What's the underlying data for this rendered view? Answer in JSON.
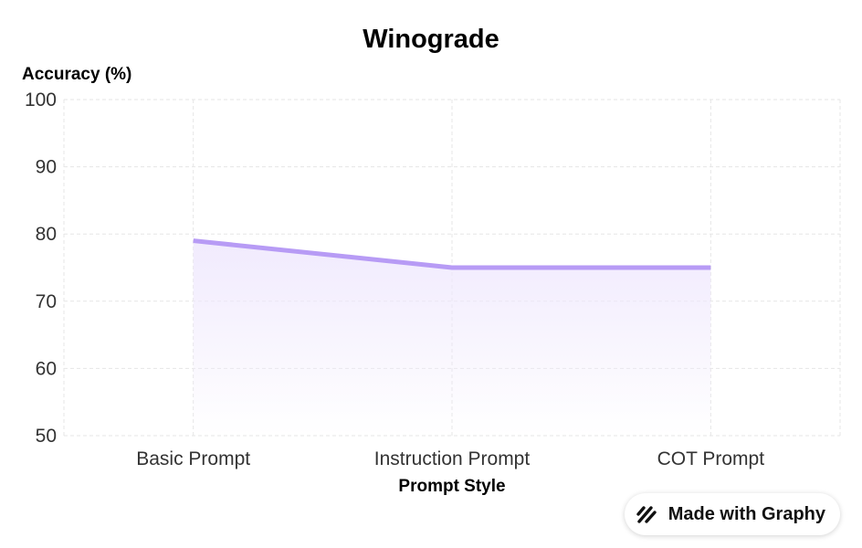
{
  "chart_data": {
    "type": "area",
    "title": "Winograde",
    "xlabel": "Prompt Style",
    "ylabel": "Accuracy (%)",
    "categories": [
      "Basic Prompt",
      "Instruction Prompt",
      "COT Prompt"
    ],
    "series": [
      {
        "values": [
          79,
          75,
          75
        ]
      }
    ],
    "ylim": [
      50,
      100
    ],
    "yticks": [
      50,
      60,
      70,
      80,
      90,
      100
    ],
    "grid": true,
    "colors": {
      "line": "#b79bf5",
      "fill": "#efe8fd"
    }
  },
  "watermark": {
    "text": "Made with Graphy",
    "icon": "graphy-logo-icon"
  }
}
